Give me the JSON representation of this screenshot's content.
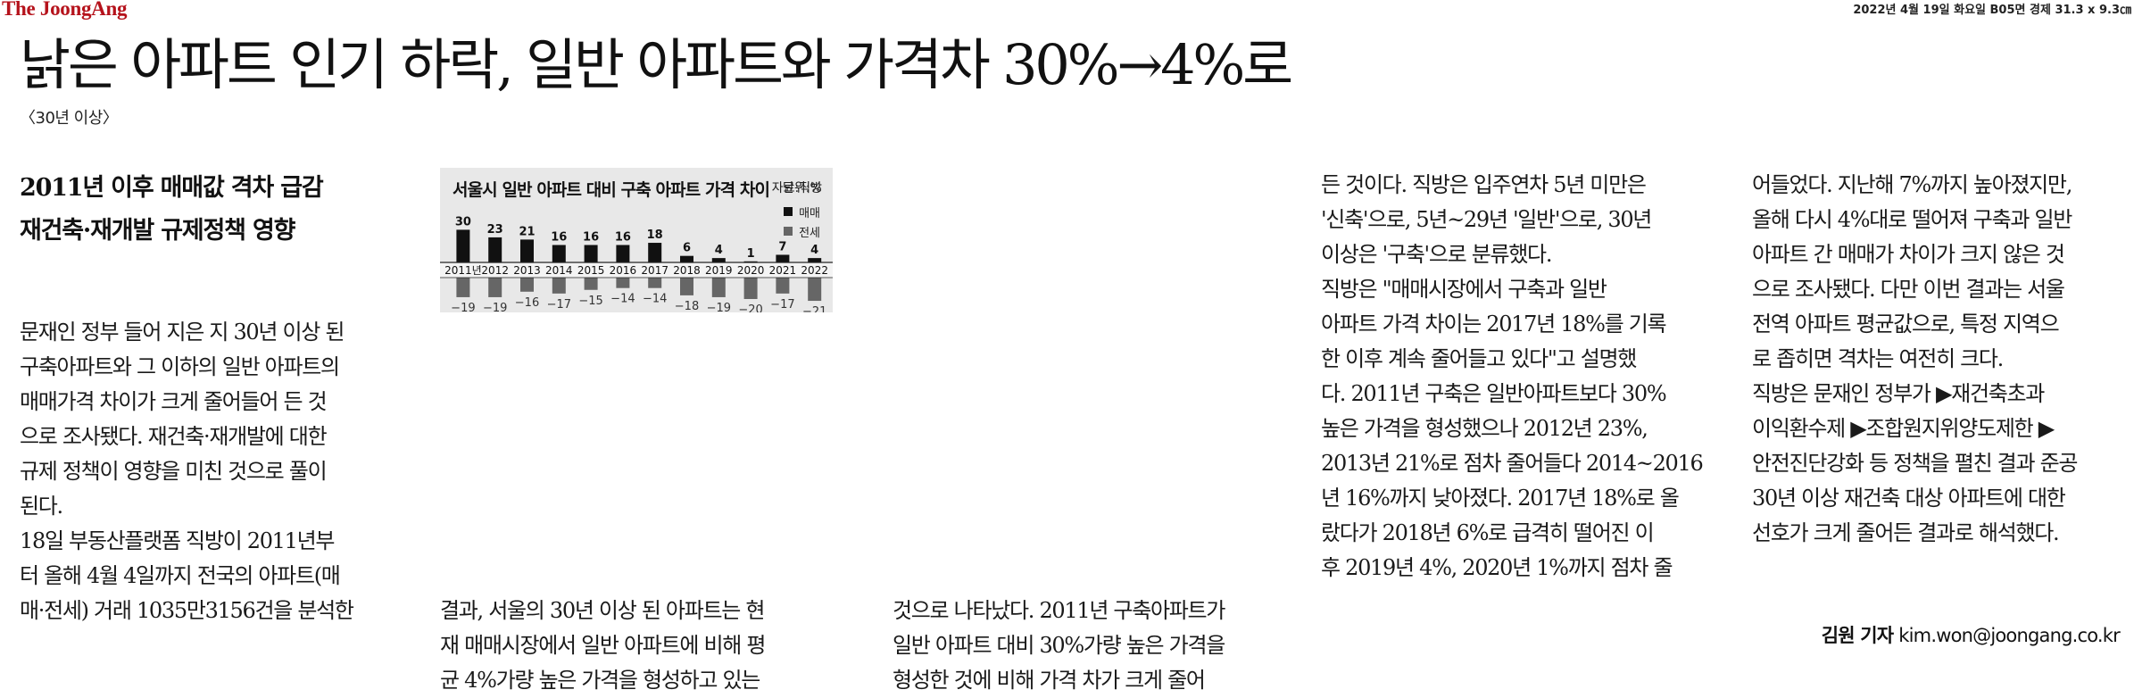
{
  "masthead": {
    "logo": "The JoongAng",
    "issue_meta": "2022년 4월 19일 화요일 B05면 경제 31.3 x 9.3㎝"
  },
  "article": {
    "headline": "낡은 아파트 인기 하락, 일반 아파트와 가격차 30%→4%로",
    "subhead": "〈30년 이상〉",
    "deck": [
      "2011년 이후 매매값 격차 급감",
      "재건축·재개발 규제정책 영향"
    ],
    "columns": [
      [
        "문재인 정부 들어 지은 지 30년 이상 된",
        "구축아파트와 그 이하의 일반 아파트의",
        "매매가격 차이가 크게 줄어들어 든 것",
        "으로 조사됐다. 재건축·재개발에 대한",
        "규제 정책이 영향을 미친 것으로 풀이",
        "된다.",
        "  18일 부동산플랫폼 직방이 2011년부",
        "터 올해 4월 4일까지 전국의 아파트(매",
        "매·전세) 거래 1035만3156건을 분석한"
      ],
      [
        "결과, 서울의 30년 이상 된 아파트는 현",
        "재 매매시장에서 일반 아파트에 비해 평",
        "균 4%가량 높은 가격을 형성하고 있는"
      ],
      [
        "것으로 나타났다. 2011년 구축아파트가",
        "일반 아파트 대비 30%가량 높은 가격을",
        "형성한 것에 비해 가격 차가 크게 줄어"
      ],
      [
        "든 것이다. 직방은 입주연차 5년 미만은",
        "'신축'으로, 5년~29년 '일반'으로, 30년",
        "이상은 '구축'으로 분류했다.",
        "  직방은 \"매매시장에서 구축과 일반",
        "아파트 가격 차이는 2017년 18%를 기록",
        "한 이후 계속 줄어들고 있다\"고 설명했",
        "다. 2011년 구축은 일반아파트보다 30%",
        "높은 가격을 형성했으나 2012년 23%,",
        "2013년 21%로 점차 줄어들다 2014~2016",
        "년 16%까지 낮아졌다. 2017년 18%로 올",
        "랐다가 2018년 6%로 급격히 떨어진 이",
        "후 2019년 4%, 2020년 1%까지 점차 줄"
      ],
      [
        "어들었다. 지난해 7%까지 높아졌지만,",
        "올해 다시 4%대로 떨어져 구축과 일반",
        "아파트 간 매매가 차이가 크지 않은 것",
        "으로 조사됐다. 다만 이번 결과는 서울",
        "전역 아파트 평균값으로, 특정 지역으",
        "로 좁히면 격차는 여전히 크다.",
        "  직방은 문재인 정부가 ▶재건축초과",
        "이익환수제 ▶조합원지위양도제한 ▶",
        "안전진단강화 등 정책을 펼친 결과 준공",
        "30년 이상 재건축 대상 아파트에 대한",
        "선호가 크게 줄어든 결과로 해석했다."
      ]
    ],
    "byline_name": "김원 기자",
    "byline_email": "kim.won@joongang.co.kr"
  },
  "chart_data": {
    "type": "bar",
    "title": "서울시 일반 아파트 대비 구축 아파트 가격 차이",
    "unit": "단위:%",
    "source": "자료:직방",
    "categories": [
      "2011년",
      "2012",
      "2013",
      "2014",
      "2015",
      "2016",
      "2017",
      "2018",
      "2019",
      "2020",
      "2021",
      "2022"
    ],
    "series": [
      {
        "name": "매매",
        "color": "#111111",
        "values": [
          30,
          23,
          21,
          16,
          16,
          16,
          18,
          6,
          4,
          1,
          7,
          4
        ]
      },
      {
        "name": "전세",
        "color": "#666666",
        "values": [
          -19,
          -19,
          -16,
          -17,
          -15,
          -14,
          -14,
          -18,
          -19,
          -20,
          -17,
          -21
        ]
      }
    ],
    "legend_position": "top-right",
    "ylim": [
      -21,
      30
    ]
  }
}
